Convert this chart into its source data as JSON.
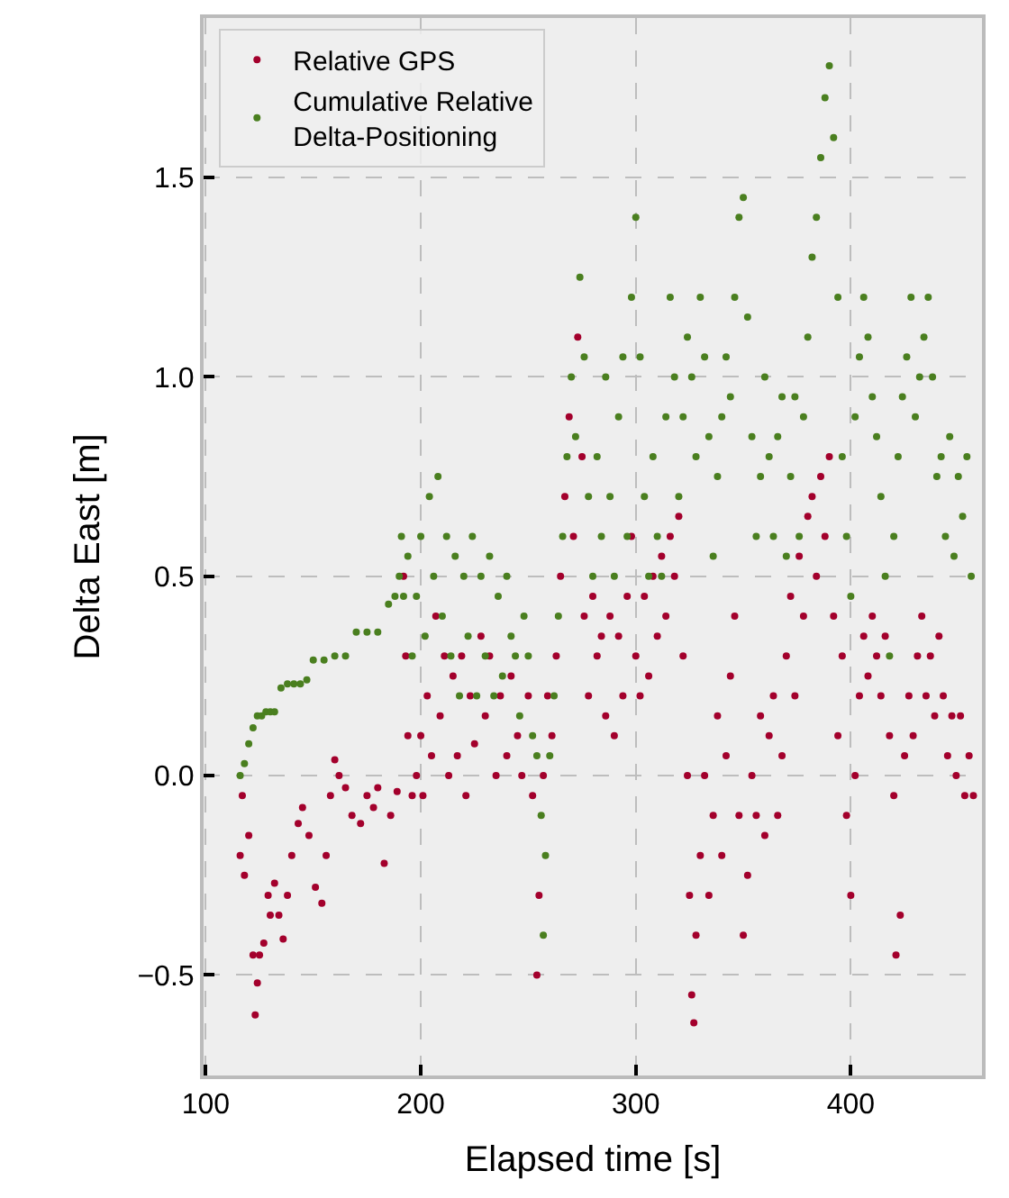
{
  "chart_data": {
    "type": "scatter",
    "xlabel": "Elapsed time [s]",
    "ylabel": "Delta East [m]",
    "xlim": [
      99,
      461
    ],
    "ylim": [
      -0.752,
      1.9
    ],
    "xticks": [
      100,
      200,
      300,
      400
    ],
    "yticks": [
      {
        "value": -0.5,
        "label": "−0.5"
      },
      {
        "value": 0.0,
        "label": "0.0"
      },
      {
        "value": 0.5,
        "label": "0.5"
      },
      {
        "value": 1.0,
        "label": "1.0"
      },
      {
        "value": 1.5,
        "label": "1.5"
      }
    ],
    "grid": true,
    "legend": "top left",
    "marker": "circle",
    "series": [
      {
        "name": "Relative GPS",
        "color": "#a3002c",
        "x": [
          116,
          117,
          118,
          120,
          122,
          123,
          124,
          125,
          127,
          129,
          130,
          132,
          134,
          136,
          138,
          140,
          143,
          145,
          148,
          151,
          154,
          156,
          158,
          160,
          162,
          165,
          168,
          172,
          175,
          178,
          180,
          183,
          186,
          189,
          192,
          193,
          194,
          196,
          198,
          200,
          201,
          203,
          205,
          207,
          209,
          211,
          213,
          215,
          217,
          219,
          221,
          223,
          225,
          228,
          230,
          232,
          235,
          237,
          240,
          242,
          245,
          247,
          250,
          252,
          254,
          255,
          257,
          259,
          261,
          263,
          265,
          267,
          269,
          271,
          273,
          275,
          276,
          278,
          280,
          282,
          284,
          286,
          288,
          290,
          292,
          294,
          296,
          298,
          300,
          302,
          304,
          306,
          308,
          310,
          312,
          314,
          316,
          318,
          320,
          322,
          324,
          325,
          326,
          327,
          328,
          330,
          332,
          334,
          336,
          338,
          340,
          342,
          344,
          346,
          348,
          350,
          352,
          354,
          356,
          358,
          360,
          362,
          364,
          366,
          368,
          370,
          372,
          374,
          376,
          378,
          380,
          382,
          384,
          386,
          388,
          390,
          392,
          394,
          396,
          398,
          400,
          402,
          404,
          406,
          408,
          410,
          412,
          414,
          416,
          418,
          420,
          421,
          423,
          425,
          427,
          429,
          431,
          433,
          435,
          437,
          439,
          441,
          443,
          445,
          447,
          449,
          451,
          453,
          455,
          457
        ],
        "values": [
          -0.2,
          -0.05,
          -0.25,
          -0.15,
          -0.45,
          -0.6,
          -0.52,
          -0.45,
          -0.42,
          -0.3,
          -0.35,
          -0.27,
          -0.35,
          -0.41,
          -0.3,
          -0.2,
          -0.12,
          -0.08,
          -0.15,
          -0.28,
          -0.32,
          -0.2,
          -0.05,
          0.04,
          0.0,
          -0.03,
          -0.1,
          -0.12,
          -0.05,
          -0.08,
          -0.03,
          -0.22,
          -0.1,
          -0.04,
          0.5,
          0.3,
          0.1,
          -0.05,
          0.0,
          0.1,
          -0.05,
          0.2,
          0.05,
          0.4,
          0.15,
          0.3,
          0.0,
          0.25,
          0.05,
          0.3,
          -0.05,
          0.2,
          0.08,
          0.35,
          0.15,
          0.3,
          0.0,
          0.2,
          0.05,
          0.25,
          0.1,
          0.0,
          0.2,
          -0.05,
          -0.5,
          -0.3,
          0.0,
          0.2,
          0.1,
          0.3,
          0.5,
          0.7,
          0.9,
          0.6,
          1.1,
          0.8,
          0.4,
          0.2,
          0.45,
          0.3,
          0.35,
          0.15,
          0.4,
          0.1,
          0.35,
          0.2,
          0.45,
          0.6,
          0.3,
          0.2,
          0.45,
          0.25,
          0.5,
          0.35,
          0.55,
          0.4,
          0.6,
          0.5,
          0.65,
          0.3,
          0.0,
          -0.3,
          -0.55,
          -0.62,
          -0.4,
          -0.2,
          0.0,
          -0.3,
          -0.1,
          0.15,
          -0.2,
          0.05,
          0.25,
          0.4,
          -0.1,
          -0.4,
          -0.25,
          0.0,
          -0.1,
          0.15,
          -0.15,
          0.1,
          0.2,
          -0.1,
          0.05,
          0.3,
          0.45,
          0.2,
          0.55,
          0.4,
          0.65,
          0.7,
          0.5,
          0.75,
          0.6,
          0.8,
          0.4,
          0.1,
          0.3,
          -0.1,
          -0.3,
          0.0,
          0.2,
          0.35,
          0.25,
          0.4,
          0.3,
          0.2,
          0.35,
          0.1,
          -0.05,
          -0.45,
          -0.35,
          0.05,
          0.2,
          0.1,
          0.3,
          0.4,
          0.2,
          0.3,
          0.15,
          0.35,
          0.2,
          0.05,
          0.15,
          0.0,
          0.15,
          -0.05,
          0.05,
          -0.05
        ]
      },
      {
        "name": "Cumulative Relative Delta-Positioning",
        "color": "#4a7f1f",
        "x": [
          116,
          118,
          120,
          122,
          124,
          126,
          128,
          130,
          132,
          135,
          138,
          141,
          144,
          147,
          150,
          155,
          160,
          165,
          170,
          175,
          180,
          185,
          188,
          190,
          191,
          192,
          194,
          196,
          198,
          200,
          202,
          204,
          206,
          208,
          210,
          212,
          214,
          216,
          218,
          220,
          222,
          224,
          226,
          228,
          230,
          232,
          234,
          236,
          238,
          240,
          242,
          244,
          246,
          248,
          250,
          252,
          254,
          256,
          257,
          258,
          260,
          262,
          264,
          266,
          268,
          270,
          272,
          274,
          276,
          278,
          280,
          282,
          284,
          286,
          288,
          290,
          292,
          294,
          296,
          298,
          300,
          302,
          304,
          306,
          308,
          310,
          312,
          314,
          316,
          318,
          320,
          322,
          324,
          326,
          328,
          330,
          332,
          334,
          336,
          338,
          340,
          342,
          344,
          346,
          348,
          350,
          352,
          354,
          356,
          358,
          360,
          362,
          364,
          366,
          368,
          370,
          372,
          374,
          376,
          378,
          380,
          382,
          384,
          386,
          388,
          390,
          392,
          394,
          396,
          398,
          400,
          402,
          404,
          406,
          408,
          410,
          412,
          414,
          416,
          418,
          420,
          422,
          424,
          426,
          428,
          430,
          432,
          434,
          436,
          438,
          440,
          442,
          444,
          446,
          448,
          450,
          452,
          454,
          456
        ],
        "values": [
          0.0,
          0.03,
          0.08,
          0.12,
          0.15,
          0.15,
          0.16,
          0.16,
          0.16,
          0.22,
          0.23,
          0.23,
          0.23,
          0.24,
          0.29,
          0.29,
          0.3,
          0.3,
          0.36,
          0.36,
          0.36,
          0.43,
          0.45,
          0.5,
          0.6,
          0.45,
          0.55,
          0.3,
          0.45,
          0.6,
          0.35,
          0.7,
          0.5,
          0.75,
          0.4,
          0.6,
          0.3,
          0.55,
          0.2,
          0.5,
          0.35,
          0.6,
          0.2,
          0.5,
          0.3,
          0.55,
          0.2,
          0.45,
          0.25,
          0.5,
          0.35,
          0.3,
          0.15,
          0.4,
          0.3,
          0.1,
          0.05,
          -0.1,
          -0.4,
          -0.2,
          0.05,
          0.2,
          0.4,
          0.6,
          0.8,
          1.0,
          0.85,
          1.25,
          1.05,
          0.7,
          0.5,
          0.8,
          0.6,
          1.0,
          0.7,
          0.5,
          0.9,
          1.05,
          0.6,
          1.2,
          1.4,
          1.05,
          0.7,
          0.5,
          0.8,
          0.6,
          0.5,
          0.9,
          1.2,
          1.0,
          0.7,
          0.9,
          1.1,
          1.0,
          0.8,
          1.2,
          1.05,
          0.85,
          0.55,
          0.75,
          0.9,
          1.05,
          0.95,
          1.2,
          1.4,
          1.45,
          1.15,
          0.85,
          0.6,
          0.75,
          1.0,
          0.8,
          0.6,
          0.85,
          0.95,
          0.55,
          0.75,
          0.95,
          0.6,
          0.9,
          1.1,
          1.3,
          1.4,
          1.55,
          1.7,
          1.78,
          1.6,
          1.2,
          0.8,
          0.6,
          0.45,
          0.9,
          1.05,
          1.2,
          1.1,
          0.95,
          0.85,
          0.7,
          0.5,
          0.3,
          0.6,
          0.8,
          0.95,
          1.05,
          1.2,
          0.9,
          1.0,
          1.1,
          1.2,
          1.0,
          0.75,
          0.8,
          0.6,
          0.85,
          0.55,
          0.75,
          0.65,
          0.8,
          0.5
        ]
      }
    ]
  }
}
